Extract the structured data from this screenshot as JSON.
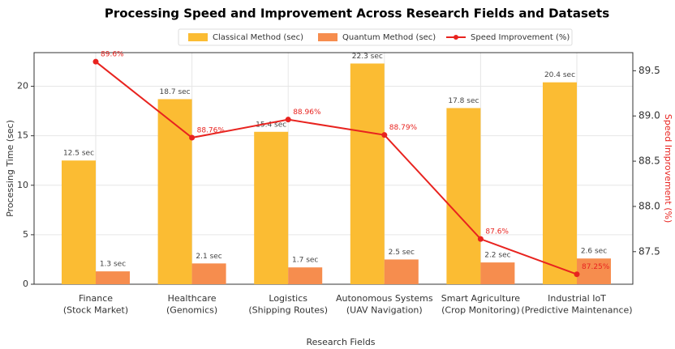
{
  "chart_data": {
    "type": "bar",
    "title": "Processing Speed and Improvement Across Research Fields and Datasets",
    "xlabel": "Research Fields",
    "ylabel": "Processing Time (sec)",
    "y2label": "Speed Improvement (%)",
    "categories": [
      "Finance\n(Stock Market)",
      "Healthcare\n(Genomics)",
      "Logistics\n(Shipping Routes)",
      "Autonomous Systems\n(UAV Navigation)",
      "Smart Agriculture\n(Crop Monitoring)",
      "Industrial IoT\n(Predictive Maintenance)"
    ],
    "series": [
      {
        "name": "Classical Method (sec)",
        "color": "#fbbc33",
        "type": "bar",
        "values": [
          12.5,
          18.7,
          15.4,
          22.3,
          17.8,
          20.4
        ],
        "value_labels": [
          "12.5 sec",
          "18.7 sec",
          "15.4 sec",
          "22.3 sec",
          "17.8 sec",
          "20.4 sec"
        ]
      },
      {
        "name": "Quantum Method (sec)",
        "color": "#f68d4e",
        "type": "bar",
        "values": [
          1.3,
          2.1,
          1.7,
          2.5,
          2.2,
          2.6
        ],
        "value_labels": [
          "1.3 sec",
          "2.1 sec",
          "1.7 sec",
          "2.5 sec",
          "2.2 sec",
          "2.6 sec"
        ]
      },
      {
        "name": "Speed Improvement (%)",
        "color": "#e8231f",
        "type": "line",
        "axis": "y2",
        "values": [
          89.6,
          88.76,
          88.96,
          88.79,
          87.64,
          87.25
        ],
        "value_labels": [
          "89.6%",
          "88.76%",
          "88.96%",
          "88.79%",
          "87.6%",
          "87.25%"
        ]
      }
    ],
    "ylim": [
      0,
      23.4
    ],
    "yticks": [
      0,
      5,
      10,
      15,
      20
    ],
    "y2lim": [
      87.14,
      89.7
    ],
    "y2ticks": [
      87.5,
      {
        "value": 88,
        "label": "88.0"
      },
      88.5,
      {
        "value": 89,
        "label": "89.0"
      },
      89.5
    ],
    "grid": true,
    "legend": "top"
  }
}
